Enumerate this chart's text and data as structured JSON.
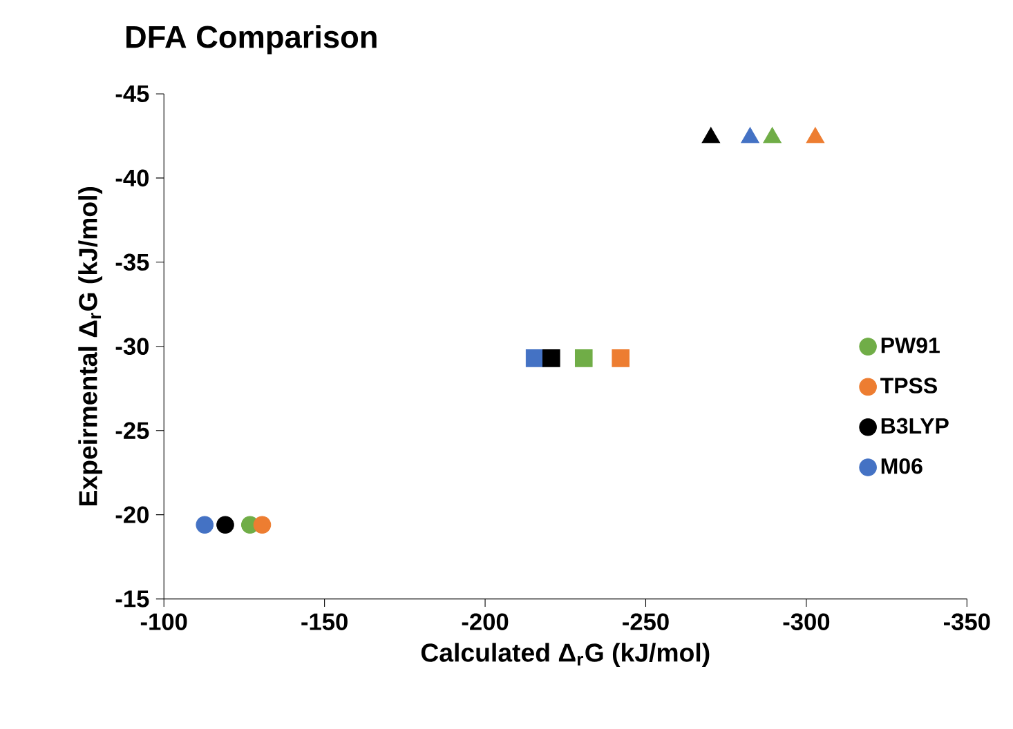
{
  "chart_data": {
    "type": "scatter",
    "title": "DFA Comparison",
    "xlabel": "Calculated Δ$_{r}$G (kJ/mol)",
    "ylabel": "Expeirmental  Δ$_{r}$G (kJ/mol)",
    "xlim": [
      -100,
      -350
    ],
    "xticks": [
      -100,
      -150,
      -200,
      -250,
      -300,
      -350
    ],
    "ylim": [
      -15,
      -45
    ],
    "yticks": [
      -15,
      -20,
      -25,
      -30,
      -35,
      -40,
      -45
    ],
    "grid": false,
    "legend": "right",
    "series": [
      {
        "name": "PW91",
        "color": "#70ad47",
        "marker": "circle",
        "x": [
          -126.8
        ],
        "values": [
          -19.4
        ]
      },
      {
        "name": "TPSS",
        "color": "#ed7d31",
        "marker": "circle",
        "x": [
          -130.6
        ],
        "values": [
          -19.4
        ]
      },
      {
        "name": "B3LYP",
        "color": "#000000",
        "marker": "circle",
        "x": [
          -119.1
        ],
        "values": [
          -19.4
        ]
      },
      {
        "name": "M06",
        "color": "#4472c4",
        "marker": "circle",
        "x": [
          -112.7
        ],
        "values": [
          -19.4
        ]
      },
      {
        "color": "#70ad47",
        "marker": "square",
        "x": [
          -230.7
        ],
        "values": [
          -29.3
        ]
      },
      {
        "color": "#ed7d31",
        "marker": "square",
        "x": [
          -242.2
        ],
        "values": [
          -29.3
        ]
      },
      {
        "color": "#4472c4",
        "marker": "square",
        "x": [
          -215.4
        ],
        "values": [
          -29.3
        ]
      },
      {
        "color": "#000000",
        "marker": "square",
        "x": [
          -220.6
        ],
        "values": [
          -29.3
        ]
      },
      {
        "color": "#000000",
        "marker": "triangle",
        "x": [
          -270.3
        ],
        "values": [
          -42.4
        ]
      },
      {
        "color": "#4472c4",
        "marker": "triangle",
        "x": [
          -282.5
        ],
        "values": [
          -42.4
        ]
      },
      {
        "color": "#70ad47",
        "marker": "triangle",
        "x": [
          -289.4
        ],
        "values": [
          -42.4
        ]
      },
      {
        "color": "#ed7d31",
        "marker": "triangle",
        "x": [
          -302.8
        ],
        "values": [
          -42.4
        ]
      }
    ]
  }
}
